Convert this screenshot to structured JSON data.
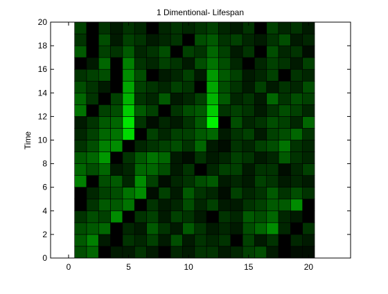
{
  "chart_data": {
    "type": "heatmap",
    "title": "1 Dimentional- Lifespan",
    "xlabel": "",
    "ylabel": "Time",
    "xlim": [
      -1.5,
      23.5
    ],
    "ylim": [
      0,
      20
    ],
    "xticks": [
      0,
      5,
      10,
      15,
      20
    ],
    "yticks": [
      0,
      2,
      4,
      6,
      8,
      10,
      12,
      14,
      16,
      18,
      20
    ],
    "x_cells": [
      1,
      2,
      3,
      4,
      5,
      6,
      7,
      8,
      9,
      10,
      11,
      12,
      13,
      14,
      15,
      16,
      17,
      18,
      19,
      20
    ],
    "grid": false,
    "colormap": {
      "low": "#000000",
      "high": "#00ff00"
    },
    "rows_bottom_to_top": [
      [
        0.3,
        0.4,
        0.0,
        0.1,
        0.1,
        0.2,
        0.1,
        0.0,
        0.15,
        0.1,
        0.2,
        0.2,
        0.1,
        0.15,
        0.25,
        0.3,
        0.1,
        0.0,
        0.05,
        0.05
      ],
      [
        0.35,
        0.5,
        0.1,
        0.0,
        0.2,
        0.15,
        0.25,
        0.1,
        0.3,
        0.1,
        0.2,
        0.15,
        0.2,
        0.0,
        0.25,
        0.1,
        0.2,
        0.0,
        0.15,
        0.1
      ],
      [
        0.3,
        0.35,
        0.4,
        0.0,
        0.15,
        0.1,
        0.35,
        0.2,
        0.1,
        0.35,
        0.2,
        0.1,
        0.15,
        0.1,
        0.3,
        0.4,
        0.55,
        0.15,
        0.0,
        0.2
      ],
      [
        0.2,
        0.3,
        0.25,
        0.55,
        0.0,
        0.2,
        0.25,
        0.1,
        0.25,
        0.2,
        0.1,
        0.0,
        0.2,
        0.15,
        0.35,
        0.3,
        0.4,
        0.15,
        0.1,
        0.0
      ],
      [
        0.0,
        0.2,
        0.35,
        0.35,
        0.45,
        0.0,
        0.2,
        0.1,
        0.15,
        0.3,
        0.15,
        0.25,
        0.1,
        0.1,
        0.2,
        0.25,
        0.35,
        0.35,
        0.55,
        0.0
      ],
      [
        0.0,
        0.15,
        0.25,
        0.3,
        0.45,
        0.55,
        0.05,
        0.25,
        0.1,
        0.35,
        0.2,
        0.15,
        0.05,
        0.25,
        0.15,
        0.2,
        0.35,
        0.2,
        0.3,
        0.2
      ],
      [
        0.5,
        0.0,
        0.3,
        0.35,
        0.15,
        0.55,
        0.25,
        0.05,
        0.15,
        0.2,
        0.3,
        0.35,
        0.1,
        0.15,
        0.1,
        0.25,
        0.2,
        0.1,
        0.15,
        0.1
      ],
      [
        0.4,
        0.3,
        0.4,
        0.1,
        0.15,
        0.4,
        0.4,
        0.3,
        0.1,
        0.2,
        0.0,
        0.15,
        0.25,
        0.25,
        0.1,
        0.2,
        0.2,
        0.05,
        0.15,
        0.25
      ],
      [
        0.35,
        0.4,
        0.6,
        0.0,
        0.2,
        0.35,
        0.45,
        0.4,
        0.1,
        0.05,
        0.2,
        0.1,
        0.15,
        0.25,
        0.2,
        0.1,
        0.15,
        0.35,
        0.2,
        0.15
      ],
      [
        0.2,
        0.3,
        0.5,
        0.55,
        0.0,
        0.15,
        0.2,
        0.25,
        0.3,
        0.2,
        0.4,
        0.1,
        0.05,
        0.2,
        0.15,
        0.25,
        0.3,
        0.45,
        0.2,
        0.15
      ],
      [
        0.15,
        0.25,
        0.4,
        0.45,
        0.85,
        0.0,
        0.25,
        0.15,
        0.25,
        0.25,
        0.35,
        0.4,
        0.1,
        0.2,
        0.25,
        0.1,
        0.25,
        0.3,
        0.4,
        0.2
      ],
      [
        0.1,
        0.2,
        0.35,
        0.4,
        0.9,
        0.2,
        0.05,
        0.15,
        0.1,
        0.2,
        0.35,
        0.95,
        0.0,
        0.3,
        0.15,
        0.2,
        0.3,
        0.25,
        0.15,
        0.4
      ],
      [
        0.45,
        0.0,
        0.25,
        0.3,
        0.8,
        0.35,
        0.25,
        0.0,
        0.2,
        0.3,
        0.35,
        0.8,
        0.2,
        0.25,
        0.2,
        0.1,
        0.2,
        0.3,
        0.25,
        0.15
      ],
      [
        0.4,
        0.2,
        0.0,
        0.25,
        0.7,
        0.2,
        0.15,
        0.35,
        0.1,
        0.15,
        0.25,
        0.7,
        0.35,
        0.15,
        0.2,
        0.1,
        0.4,
        0.2,
        0.3,
        0.25
      ],
      [
        0.3,
        0.2,
        0.1,
        0.0,
        0.65,
        0.25,
        0.2,
        0.15,
        0.25,
        0.2,
        0.0,
        0.65,
        0.3,
        0.2,
        0.1,
        0.25,
        0.1,
        0.2,
        0.15,
        0.3
      ],
      [
        0.2,
        0.25,
        0.3,
        0.0,
        0.55,
        0.3,
        0.0,
        0.1,
        0.15,
        0.25,
        0.1,
        0.6,
        0.35,
        0.25,
        0.1,
        0.15,
        0.25,
        0.0,
        0.2,
        0.15
      ],
      [
        0.0,
        0.1,
        0.4,
        0.0,
        0.5,
        0.2,
        0.15,
        0.25,
        0.2,
        0.1,
        0.3,
        0.45,
        0.3,
        0.15,
        0.0,
        0.15,
        0.25,
        0.2,
        0.1,
        0.25
      ],
      [
        0.35,
        0.0,
        0.25,
        0.2,
        0.35,
        0.15,
        0.2,
        0.3,
        0.0,
        0.25,
        0.2,
        0.4,
        0.25,
        0.1,
        0.2,
        0.0,
        0.3,
        0.15,
        0.2,
        0.05
      ],
      [
        0.2,
        0.0,
        0.3,
        0.1,
        0.25,
        0.2,
        0.1,
        0.15,
        0.2,
        0.0,
        0.3,
        0.35,
        0.2,
        0.25,
        0.15,
        0.1,
        0.2,
        0.3,
        0.1,
        0.15
      ],
      [
        0.25,
        0.0,
        0.2,
        0.1,
        0.2,
        0.15,
        0.0,
        0.15,
        0.2,
        0.15,
        0.2,
        0.25,
        0.15,
        0.1,
        0.2,
        0.0,
        0.25,
        0.15,
        0.2,
        0.1
      ]
    ]
  }
}
